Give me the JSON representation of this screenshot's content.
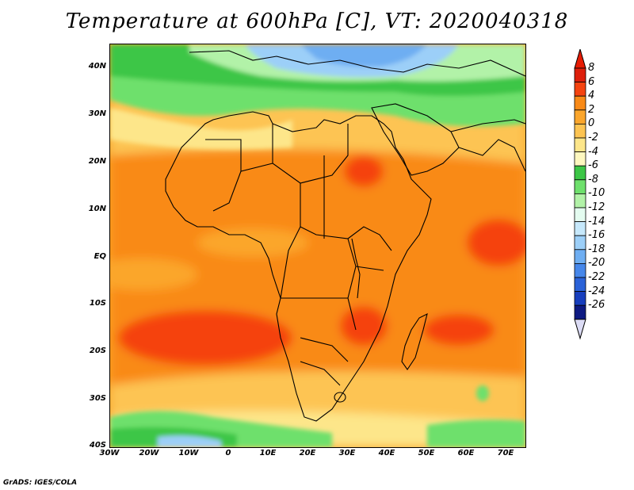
{
  "title": "Temperature at 600hPa [C], VT: 2020040318",
  "footer": "GrADS: IGES/COLA",
  "y_labels": [
    "40N",
    "30N",
    "20N",
    "10N",
    "EQ",
    "10S",
    "20S",
    "30S",
    "40S"
  ],
  "x_labels": [
    "30W",
    "20W",
    "10W",
    "0",
    "10E",
    "20E",
    "30E",
    "40E",
    "50E",
    "60E",
    "70E"
  ],
  "colorbar": {
    "labels": [
      "8",
      "6",
      "4",
      "2",
      "0",
      "-2",
      "-4",
      "-6",
      "-8",
      "-10",
      "-12",
      "-14",
      "-16",
      "-18",
      "-20",
      "-22",
      "-24",
      "-26"
    ],
    "colors": [
      "#dd1f0b",
      "#f5430f",
      "#f98a17",
      "#fba62c",
      "#fdc452",
      "#fde68a",
      "#fdf7bf",
      "#3cc646",
      "#6ee06c",
      "#b2f2a8",
      "#e4fcf0",
      "#c6e8fb",
      "#9ccff8",
      "#6eaef2",
      "#4687ea",
      "#2a62d8",
      "#173ebd",
      "#0e1a82"
    ],
    "top_color": "#e61c04",
    "bottom_color": "#dcdcf5"
  }
}
